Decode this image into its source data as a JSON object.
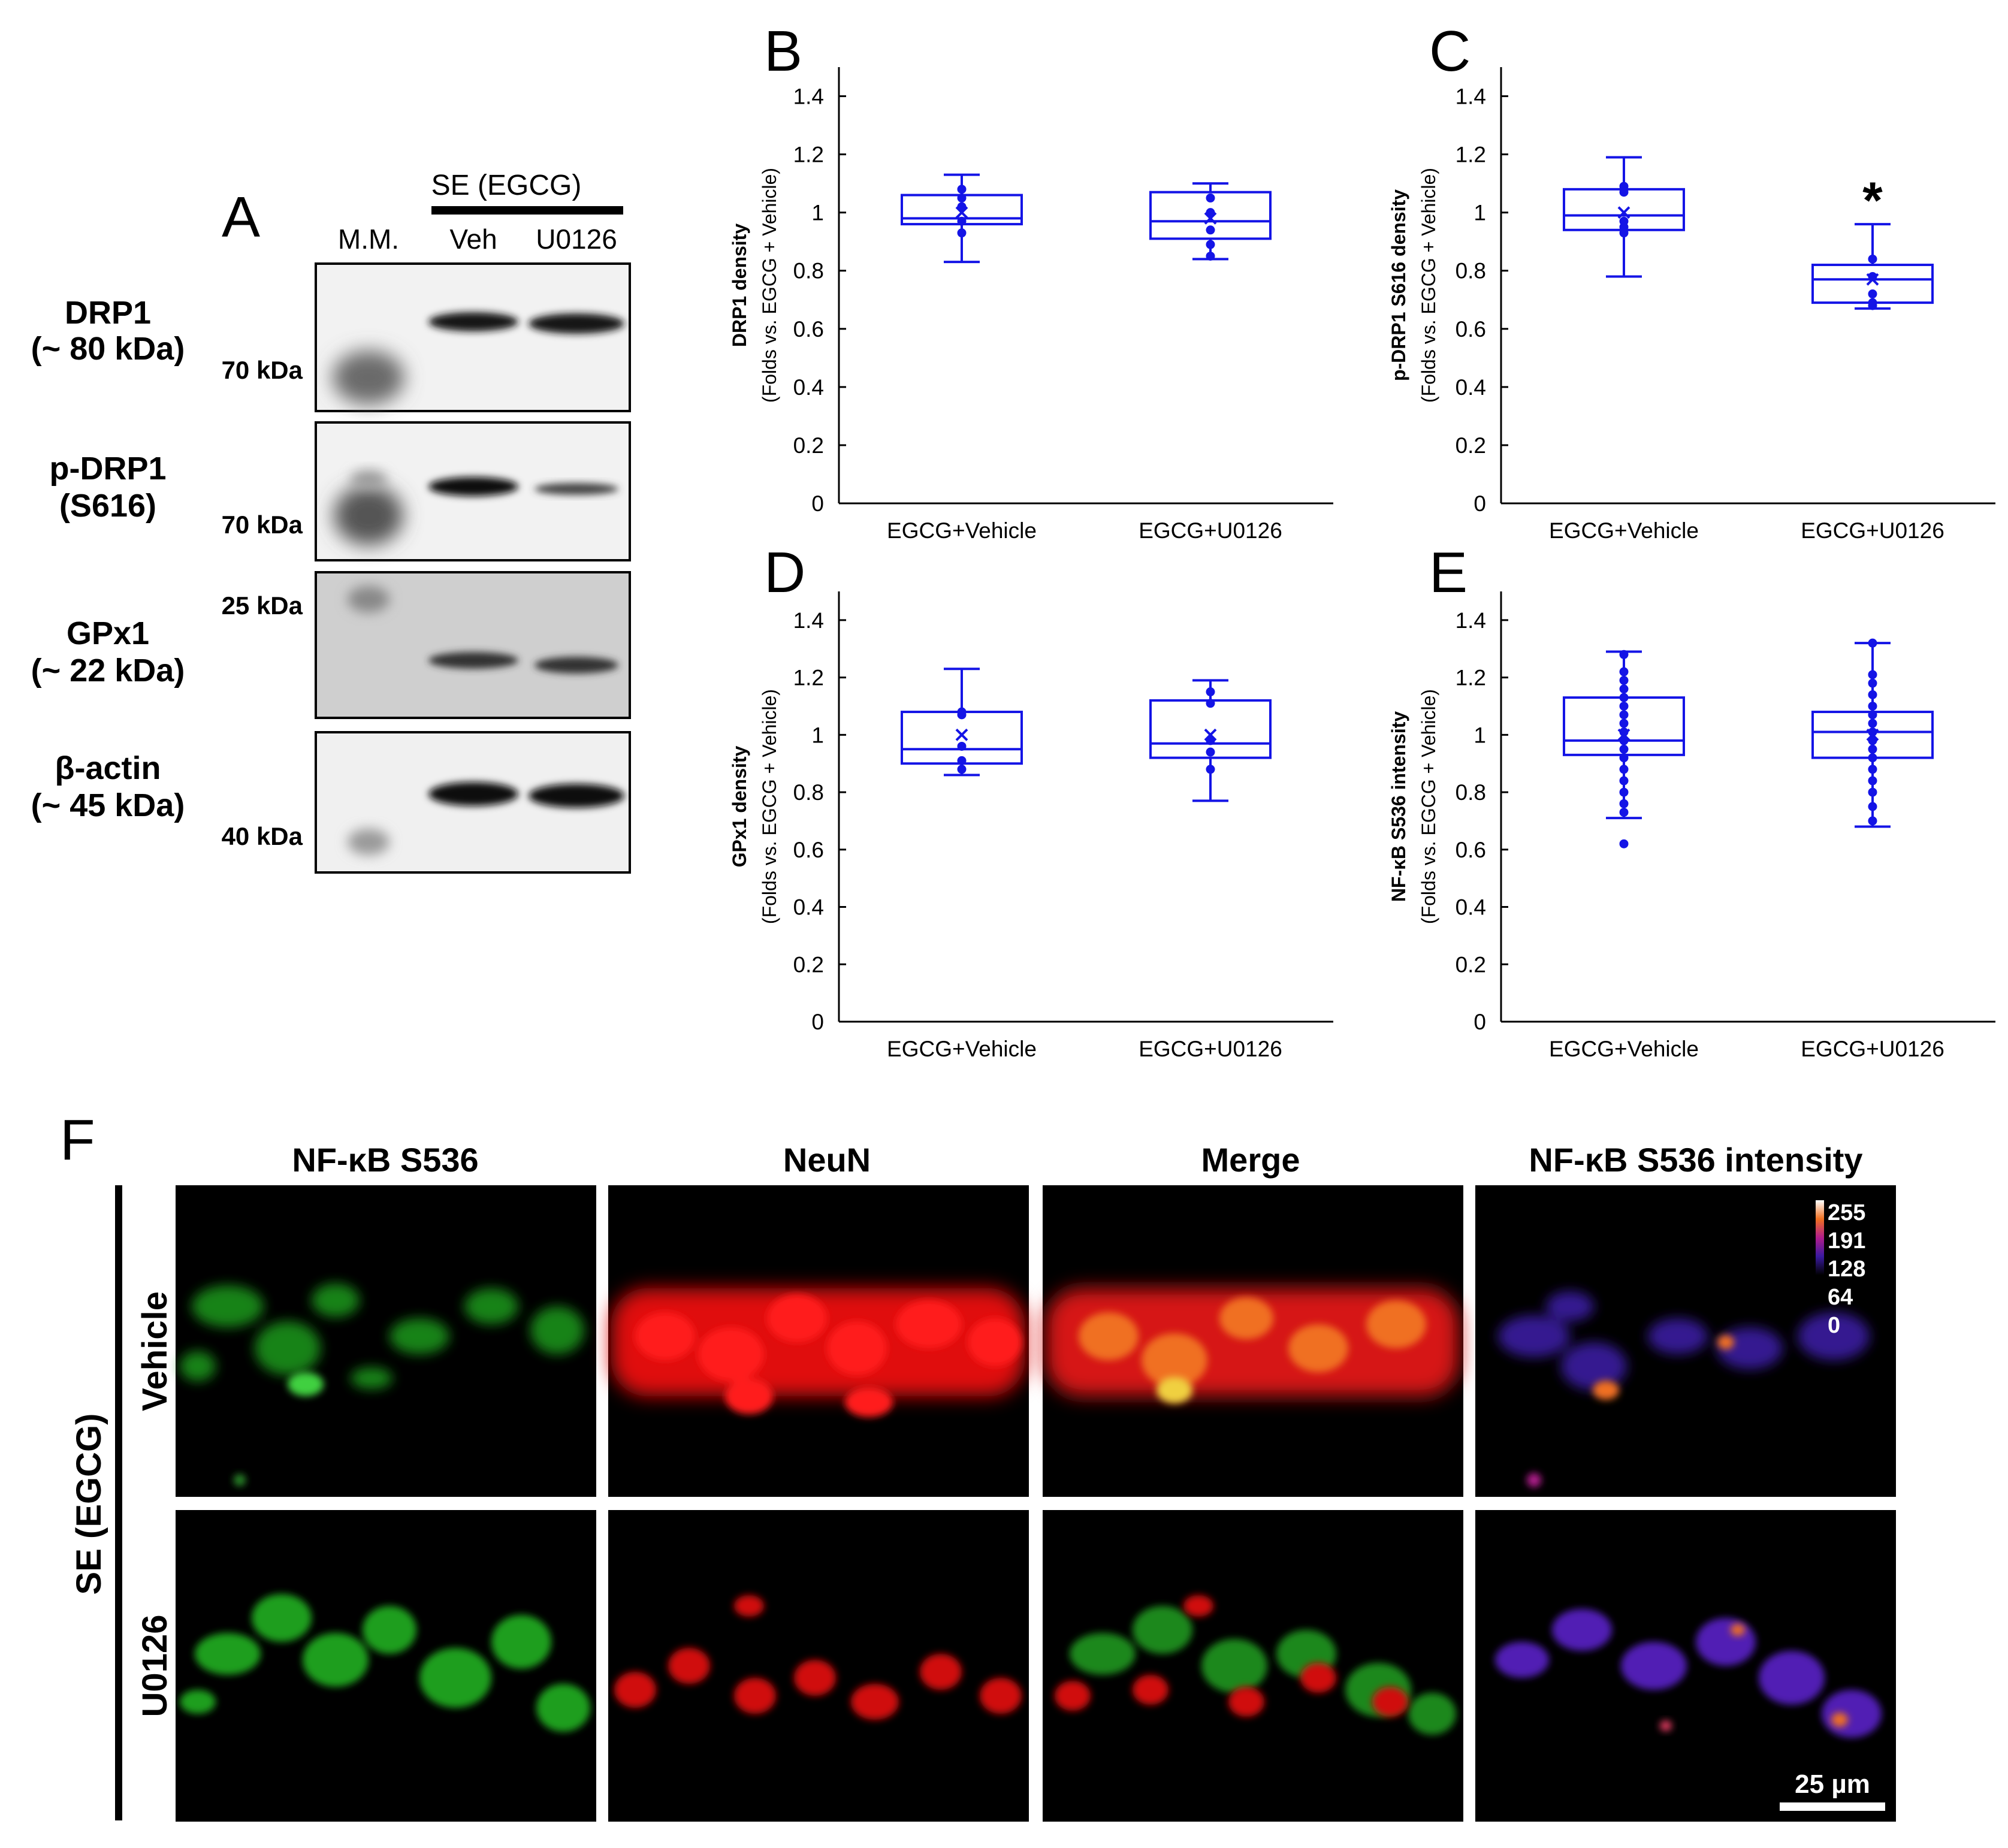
{
  "panel_letters": {
    "a": "A",
    "b": "B",
    "c": "C",
    "d": "D",
    "e": "E",
    "f": "F"
  },
  "blot": {
    "group_label": "SE (EGCG)",
    "lanes": [
      "M.M.",
      "Veh",
      "U0126"
    ],
    "proteins": [
      {
        "name": "DRP1",
        "sub": "(~ 80 kDa)",
        "marker": "70 kDa"
      },
      {
        "name": "p-DRP1",
        "sub": "(S616)",
        "marker": "70 kDa"
      },
      {
        "name": "GPx1",
        "sub": "(~ 22 kDa)",
        "marker": "25 kDa"
      },
      {
        "name": "β-actin",
        "sub": "(~ 45 kDa)",
        "marker": "40 kDa"
      }
    ]
  },
  "chart_data": [
    {
      "panel": "B",
      "type": "box",
      "ylabel_bold": "DRP1 density",
      "ylabel": "(Folds vs. EGCG + Vehicle)",
      "ylim": [
        0,
        1.5
      ],
      "yticks": [
        "0",
        "0.2",
        "0.4",
        "0.6",
        "0.8",
        "1",
        "1.2",
        "1.4"
      ],
      "categories": [
        "EGCG+Vehicle",
        "EGCG+U0126"
      ],
      "boxes": [
        {
          "min": 0.83,
          "q1": 0.96,
          "median": 0.98,
          "q3": 1.06,
          "max": 1.13,
          "mean": 1.0,
          "points": [
            1.08,
            1.05,
            1.02,
            0.97,
            0.93
          ]
        },
        {
          "min": 0.84,
          "q1": 0.91,
          "median": 0.97,
          "q3": 1.07,
          "max": 1.1,
          "mean": 0.98,
          "points": [
            1.05,
            1.0,
            0.94,
            0.89,
            0.85
          ]
        }
      ],
      "annotations": []
    },
    {
      "panel": "C",
      "type": "box",
      "ylabel_bold": "p-DRP1 S616 density",
      "ylabel": "(Folds vs. EGCG + Vehicle)",
      "ylim": [
        0,
        1.5
      ],
      "yticks": [
        "0",
        "0.2",
        "0.4",
        "0.6",
        "0.8",
        "1",
        "1.2",
        "1.4"
      ],
      "categories": [
        "EGCG+Vehicle",
        "EGCG+U0126"
      ],
      "boxes": [
        {
          "min": 0.78,
          "q1": 0.94,
          "median": 0.99,
          "q3": 1.08,
          "max": 1.19,
          "mean": 1.0,
          "points": [
            1.09,
            1.07,
            0.97,
            0.95,
            0.93
          ]
        },
        {
          "min": 0.67,
          "q1": 0.69,
          "median": 0.77,
          "q3": 0.82,
          "max": 0.96,
          "mean": 0.77,
          "points": [
            0.84,
            0.78,
            0.72,
            0.69,
            0.68
          ]
        }
      ],
      "annotations": [
        {
          "category": "EGCG+U0126",
          "text": "*"
        }
      ]
    },
    {
      "panel": "D",
      "type": "box",
      "ylabel_bold": "GPx1 density",
      "ylabel": "(Folds vs. EGCG + Vehicle)",
      "ylim": [
        0,
        1.5
      ],
      "yticks": [
        "0",
        "0.2",
        "0.4",
        "0.6",
        "0.8",
        "1",
        "1.2",
        "1.4"
      ],
      "categories": [
        "EGCG+Vehicle",
        "EGCG+U0126"
      ],
      "boxes": [
        {
          "min": 0.86,
          "q1": 0.9,
          "median": 0.95,
          "q3": 1.08,
          "max": 1.23,
          "mean": 1.0,
          "points": [
            1.08,
            1.07,
            0.96,
            0.91,
            0.88
          ]
        },
        {
          "min": 0.77,
          "q1": 0.92,
          "median": 0.97,
          "q3": 1.12,
          "max": 1.19,
          "mean": 1.0,
          "points": [
            1.15,
            1.11,
            0.98,
            0.94,
            0.88
          ]
        }
      ],
      "annotations": []
    },
    {
      "panel": "E",
      "type": "box",
      "ylabel_bold": "NF-κB S536 intensity",
      "ylabel": "(Folds vs. EGCG + Vehicle)",
      "ylim": [
        0,
        1.5
      ],
      "yticks": [
        "0",
        "0.2",
        "0.4",
        "0.6",
        "0.8",
        "1",
        "1.2",
        "1.4"
      ],
      "categories": [
        "EGCG+Vehicle",
        "EGCG+U0126"
      ],
      "boxes": [
        {
          "min": 0.71,
          "q1": 0.93,
          "median": 0.98,
          "q3": 1.13,
          "max": 1.29,
          "mean": 1.0,
          "points": [
            1.28,
            1.22,
            1.19,
            1.16,
            1.13,
            1.1,
            1.07,
            1.04,
            1.01,
            0.98,
            0.95,
            0.92,
            0.88,
            0.84,
            0.8,
            0.76,
            0.73,
            0.62
          ]
        },
        {
          "min": 0.68,
          "q1": 0.92,
          "median": 1.01,
          "q3": 1.08,
          "max": 1.32,
          "mean": 1.0,
          "points": [
            1.32,
            1.21,
            1.18,
            1.14,
            1.1,
            1.07,
            1.04,
            1.01,
            0.98,
            0.95,
            0.92,
            0.88,
            0.84,
            0.8,
            0.75,
            0.7
          ]
        }
      ],
      "annotations": []
    }
  ],
  "micro": {
    "columns": [
      "NF-κB S536",
      "NeuN",
      "Merge",
      "NF-κB S536 intensity"
    ],
    "rows": [
      "Vehicle",
      "U0126"
    ],
    "group_label": "SE (EGCG)",
    "colorbar_ticks": [
      "255",
      "191",
      "128",
      "64",
      "0"
    ],
    "scalebar": "25 µm"
  },
  "colors": {
    "box": "#1414e6",
    "background": "#ffffff",
    "micro_bg": "#000000"
  }
}
